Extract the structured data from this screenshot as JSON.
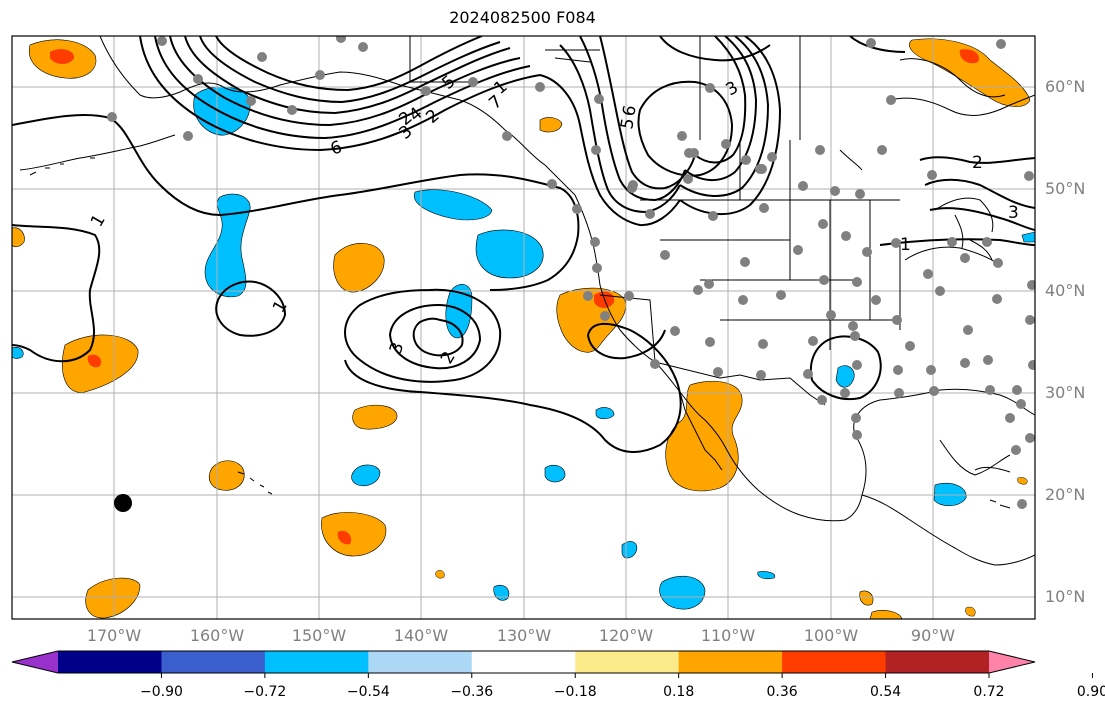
{
  "title": "2024082500 F084",
  "colors": {
    "land_outline": "#000000",
    "grid": "#b0b0b0",
    "contour": "#000000",
    "station": "#808080",
    "marker": "#000000"
  },
  "lat_labels": [
    "60°N",
    "50°N",
    "40°N",
    "30°N",
    "20°N",
    "10°N"
  ],
  "lon_labels": [
    "170°W",
    "160°W",
    "150°W",
    "140°W",
    "130°W",
    "120°W",
    "110°W",
    "100°W",
    "90°W"
  ],
  "contour_labels": [
    "1",
    "1",
    "1",
    "2",
    "2",
    "3",
    "3",
    "3",
    "4",
    "5",
    "5",
    "6",
    "6",
    "7",
    "2",
    "1",
    "2",
    "3"
  ],
  "colorbar": {
    "colors": [
      "#9932cc",
      "#00008b",
      "#3a5fcd",
      "#00bfff",
      "#add8f5",
      "#ffffff",
      "#fce98a",
      "#ffa500",
      "#ff3c00",
      "#b22222",
      "#ff82ab"
    ],
    "ticks": [
      "−0.90",
      "−0.72",
      "−0.54",
      "−0.36",
      "−0.18",
      "0.18",
      "0.36",
      "0.54",
      "0.72",
      "0.90"
    ]
  }
}
